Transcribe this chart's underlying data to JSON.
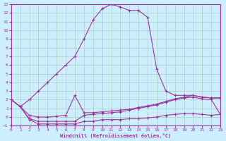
{
  "background_color": "#cceeff",
  "grid_color": "#aaccbb",
  "line_color": "#993399",
  "marker": "+",
  "xlabel": "Windchill (Refroidissement éolien,°C)",
  "xlim": [
    0,
    23
  ],
  "ylim": [
    -1,
    13
  ],
  "xticks": [
    0,
    1,
    2,
    3,
    4,
    5,
    6,
    7,
    8,
    9,
    10,
    11,
    12,
    13,
    14,
    15,
    16,
    17,
    18,
    19,
    20,
    21,
    22,
    23
  ],
  "yticks": [
    -1,
    0,
    1,
    2,
    3,
    4,
    5,
    6,
    7,
    8,
    9,
    10,
    11,
    12,
    13
  ],
  "line1_x": [
    0,
    1,
    2,
    3,
    4,
    5,
    6,
    7,
    8,
    9,
    10,
    11,
    12,
    13,
    14,
    15,
    16,
    17,
    18,
    19,
    20,
    21,
    22,
    23
  ],
  "line1_y": [
    2,
    1.2,
    2.0,
    3.0,
    4.0,
    5.0,
    6.0,
    7.0,
    9.0,
    11.2,
    12.5,
    13.0,
    12.7,
    12.3,
    12.3,
    11.5,
    5.5,
    3.0,
    2.5,
    2.5,
    2.5,
    2.3,
    2.2,
    2.2
  ],
  "line2_x": [
    0,
    1,
    2,
    3,
    4,
    5,
    6,
    7,
    8,
    9,
    10,
    11,
    12,
    13,
    14,
    15,
    16,
    17,
    18,
    19,
    20,
    21,
    22,
    23
  ],
  "line2_y": [
    2,
    1.2,
    0.2,
    0.0,
    0.0,
    0.1,
    0.2,
    2.5,
    0.5,
    0.5,
    0.6,
    0.7,
    0.8,
    0.9,
    1.1,
    1.3,
    1.5,
    1.8,
    2.1,
    2.3,
    2.5,
    2.3,
    2.2,
    2.2
  ],
  "line3_x": [
    0,
    1,
    2,
    3,
    4,
    5,
    6,
    7,
    8,
    9,
    10,
    11,
    12,
    13,
    14,
    15,
    16,
    17,
    18,
    19,
    20,
    21,
    22,
    23
  ],
  "line3_y": [
    2,
    1.2,
    -0.2,
    -0.5,
    -0.5,
    -0.5,
    -0.5,
    -0.5,
    0.2,
    0.3,
    0.4,
    0.5,
    0.6,
    0.8,
    1.0,
    1.2,
    1.4,
    1.7,
    2.0,
    2.2,
    2.3,
    2.1,
    2.0,
    0.3
  ],
  "line4_x": [
    0,
    1,
    2,
    3,
    4,
    5,
    6,
    7,
    8,
    9,
    10,
    11,
    12,
    13,
    14,
    15,
    16,
    17,
    18,
    19,
    20,
    21,
    22,
    23
  ],
  "line4_y": [
    2,
    1.2,
    -0.3,
    -0.8,
    -0.8,
    -0.8,
    -0.8,
    -0.8,
    -0.5,
    -0.5,
    -0.3,
    -0.3,
    -0.3,
    -0.2,
    -0.2,
    -0.1,
    0.0,
    0.2,
    0.3,
    0.4,
    0.4,
    0.3,
    0.2,
    0.3
  ]
}
